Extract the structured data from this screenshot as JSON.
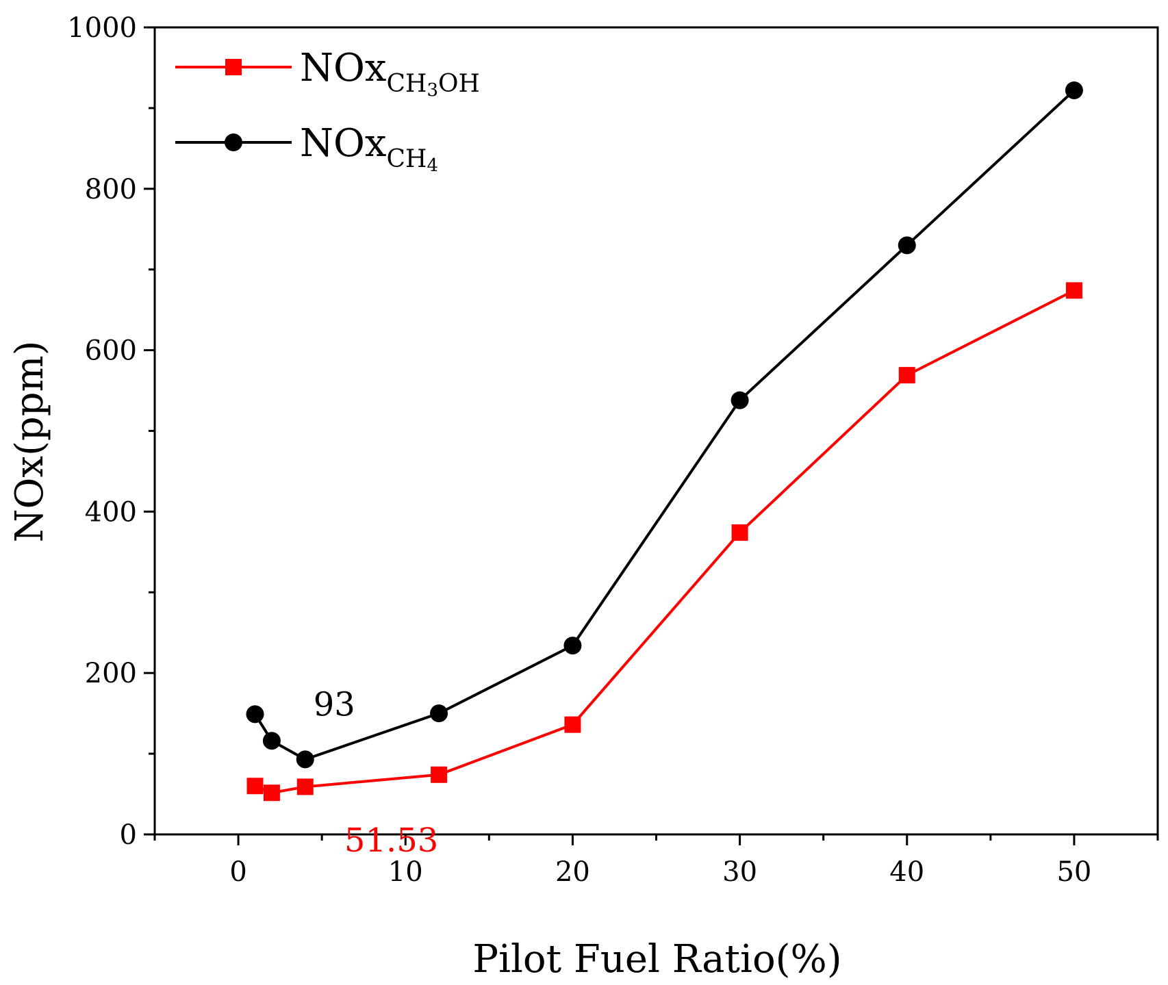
{
  "chart_data": {
    "type": "line",
    "title": "",
    "xlabel": "Pilot Fuel Ratio(%)",
    "ylabel": "NOx(ppm)",
    "xlim": [
      -5,
      55
    ],
    "ylim": [
      0,
      1000
    ],
    "x_ticks": [
      0,
      10,
      20,
      30,
      40,
      50
    ],
    "y_ticks": [
      0,
      200,
      400,
      600,
      800,
      1000
    ],
    "x_minor_ticks": [
      -5,
      5,
      15,
      25,
      35,
      45,
      55
    ],
    "y_minor_ticks": [
      100,
      300,
      500,
      700,
      900
    ],
    "grid": false,
    "legend_position": "top-left",
    "series": [
      {
        "name": "NOx",
        "subscript": "CH3OH",
        "sub_parts": [
          {
            "text": "CH",
            "kind": "sub"
          },
          {
            "text": "3",
            "kind": "subsub"
          },
          {
            "text": "OH",
            "kind": "sub"
          }
        ],
        "color": "#ff0000",
        "marker": "square",
        "x": [
          1,
          2,
          4,
          12,
          20,
          30,
          40,
          50
        ],
        "y": [
          60,
          51.53,
          59,
          74,
          136,
          374,
          569,
          674
        ]
      },
      {
        "name": "NOx",
        "subscript": "CH4",
        "sub_parts": [
          {
            "text": "CH",
            "kind": "sub"
          },
          {
            "text": "4",
            "kind": "subsub"
          }
        ],
        "color": "#000000",
        "marker": "circle",
        "x": [
          1,
          2,
          4,
          12,
          20,
          30,
          40,
          50
        ],
        "y": [
          149,
          116,
          93,
          150,
          234,
          538,
          730,
          922
        ]
      }
    ],
    "annotations": [
      {
        "text": "93",
        "x": 4.0,
        "y": 93,
        "color": "#000000"
      },
      {
        "text": "51.53",
        "x": 2.0,
        "y": 51.53,
        "color": "#ff0000"
      }
    ]
  }
}
